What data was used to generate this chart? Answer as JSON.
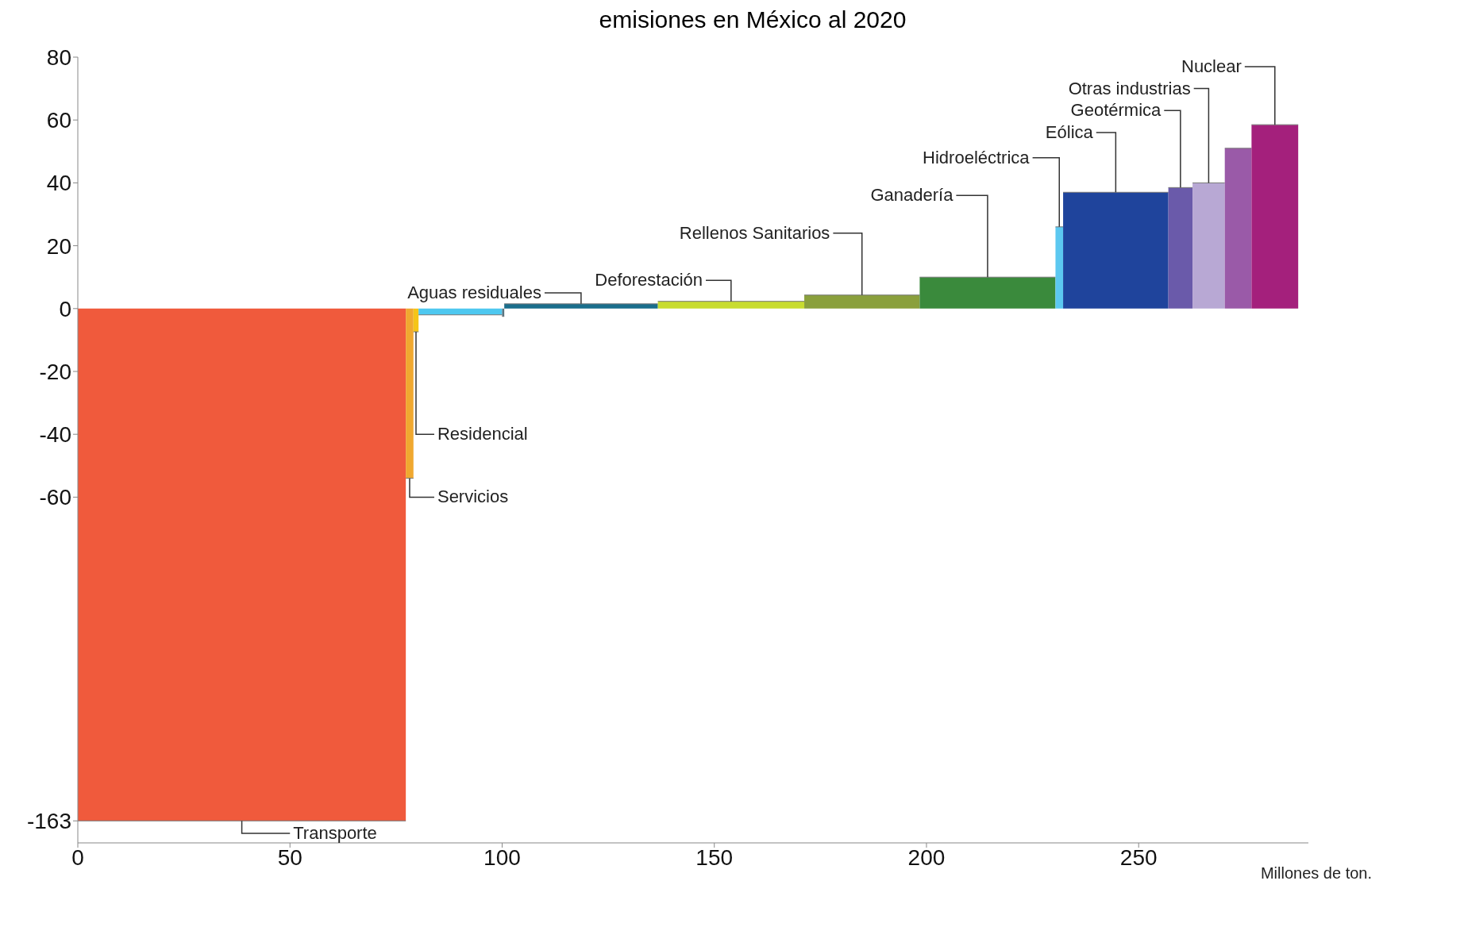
{
  "chart_data": {
    "type": "area",
    "title": "emisiones en México al 2020",
    "xlabel": "Millones de ton.",
    "xlim": [
      0,
      290
    ],
    "xticks": [
      0,
      50,
      100,
      150,
      200,
      250
    ],
    "ylim": [
      -170,
      80
    ],
    "yticks": [
      80,
      60,
      40,
      20,
      0,
      -20,
      -40,
      -60,
      -163
    ],
    "series": [
      {
        "name": "Transporte",
        "color": "#f05a3c",
        "x": [
          0,
          77.3
        ],
        "values": [
          -163,
          -163
        ]
      },
      {
        "name": "Servicios",
        "color": "#f0a830",
        "x": [
          77.3,
          79.1
        ],
        "values": [
          -54,
          -54
        ]
      },
      {
        "name": "Residencial",
        "color": "#f5c518",
        "x": [
          79.1,
          80.3
        ],
        "values": [
          -7.4,
          -7.4
        ]
      },
      {
        "color": "#4ec8f0",
        "x": [
          80.3,
          100
        ],
        "values": [
          -2,
          -2
        ]
      },
      {
        "color": "#5a7480",
        "x": [
          100,
          100.5
        ],
        "values": [
          -2.5,
          -2.5
        ]
      },
      {
        "name": "Aguas residuales",
        "color": "#1a6e8c",
        "x": [
          100.5,
          136.7
        ],
        "values": [
          1.5,
          1.5
        ]
      },
      {
        "name": "Deforestación",
        "color": "#c8dc30",
        "x": [
          136.7,
          171.2
        ],
        "values": [
          2.3,
          2.3
        ]
      },
      {
        "name": "Rellenos Sanitarios",
        "color": "#8aa03c",
        "x": [
          171.2,
          198.4
        ],
        "values": [
          4.3,
          4.3
        ]
      },
      {
        "name": "Ganadería",
        "color": "#3a8a3c",
        "x": [
          198.4,
          230.4
        ],
        "values": [
          10,
          10
        ]
      },
      {
        "name": "Hidroeléctrica",
        "color": "#5cc8f0",
        "x": [
          230.4,
          232.2
        ],
        "values": [
          26,
          26
        ]
      },
      {
        "name": "Eólica",
        "color": "#1f449c",
        "x": [
          232.2,
          257
        ],
        "values": [
          37,
          37
        ]
      },
      {
        "name": "Geotérmica",
        "color": "#6a5aaa",
        "x": [
          257,
          262.7
        ],
        "values": [
          38.5,
          38.5
        ]
      },
      {
        "name": "Otras industrias",
        "color": "#b8a8d4",
        "x": [
          262.7,
          270.3
        ],
        "values": [
          40,
          40
        ]
      },
      {
        "color": "#9a5aa8",
        "x": [
          270.3,
          276.6
        ],
        "values": [
          51,
          51
        ]
      },
      {
        "name": "Nuclear",
        "color": "#a4207c",
        "x": [
          276.6,
          287.6
        ],
        "values": [
          58.5,
          58.5
        ]
      }
    ]
  }
}
